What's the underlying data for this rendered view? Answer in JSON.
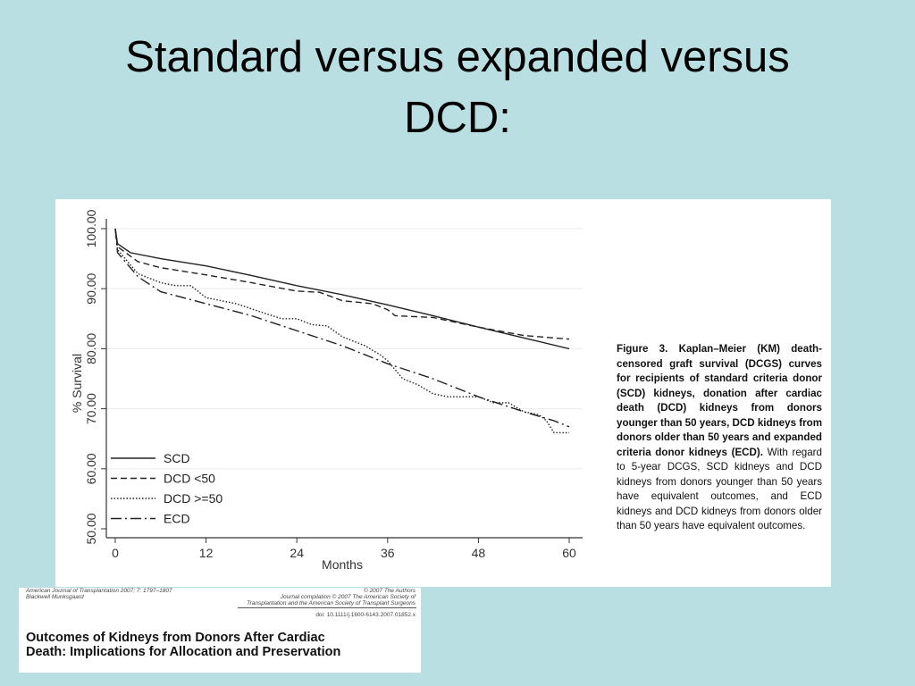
{
  "slide": {
    "title_line1": "Standard versus expanded versus",
    "title_line2": "DCD:"
  },
  "figure_caption": {
    "bold": "Figure 3. Kaplan–Meier (KM) death-censored graft survival (DCGS) curves for recipients of standard criteria donor (SCD) kidneys, donation after cardiac death (DCD) kidneys from donors younger than 50 years, DCD kidneys from donors older than 50 years and expanded criteria donor kidneys (ECD).",
    "normal": " With regard to 5-year DCGS, SCD kidneys and DCD kidneys from donors younger than 50 years have equivalent outcomes, and ECD kidneys and DCD kidneys from donors older than 50 years have equivalent outcomes."
  },
  "paper": {
    "journal": "American Journal of Transplantation 2007; 7: 1797–1807",
    "publisher": "Blackwell Munksgaard",
    "copyright": "© 2007 The Authors",
    "compilation1": "Journal compilation © 2007 The American Society of",
    "compilation2": "Transplantation and the American Society of Transplant Surgeons",
    "doi": "doi: 10.1111/j.1600-6143.2007.01852.x",
    "title_line1": "Outcomes of Kidneys from Donors After Cardiac",
    "title_line2": "Death: Implications for Allocation and Preservation"
  },
  "chart_data": {
    "type": "line",
    "xlabel": "Months",
    "ylabel": "% Survival",
    "xlim": [
      0,
      60
    ],
    "ylim": [
      50,
      100
    ],
    "xticks": [
      "0",
      "12",
      "24",
      "36",
      "48",
      "60"
    ],
    "yticks": [
      "50.00",
      "60.00",
      "70.00",
      "80.00",
      "90.00",
      "100.00"
    ],
    "grid": "horizontal",
    "legend_placement": "bottom-left",
    "series": [
      {
        "name": "SCD",
        "style": "solid",
        "x": [
          0,
          0.3,
          2,
          6,
          12,
          18,
          24,
          30,
          36,
          42,
          48,
          54,
          60
        ],
        "y": [
          100,
          97.5,
          96,
          95,
          93.8,
          92.2,
          90.5,
          89,
          87.3,
          85.5,
          83.6,
          81.8,
          80
        ]
      },
      {
        "name": "DCD <50",
        "style": "dashed",
        "x": [
          0,
          0.3,
          3,
          6,
          12,
          18,
          24,
          27,
          30,
          34,
          36,
          37,
          42,
          48,
          54,
          60
        ],
        "y": [
          100,
          97,
          94.5,
          93.5,
          92.3,
          91,
          89.6,
          89.4,
          88,
          87.5,
          86.5,
          85.5,
          85.2,
          83.6,
          82.2,
          81.6
        ]
      },
      {
        "name": "DCD >=50",
        "style": "dotted",
        "x": [
          0,
          0.3,
          3,
          6,
          8,
          10,
          12,
          16,
          20,
          22,
          24,
          26,
          28,
          30,
          33,
          35,
          36,
          38,
          40,
          42,
          44,
          48,
          50,
          52,
          54,
          56,
          57,
          58,
          60
        ],
        "y": [
          100,
          96.5,
          92.5,
          91,
          90.5,
          90.5,
          88.5,
          87.5,
          85.8,
          85,
          85,
          84,
          83.8,
          82,
          80.5,
          79,
          78,
          75,
          74,
          72.5,
          72,
          72,
          71,
          71,
          69.5,
          69,
          68,
          66,
          66
        ]
      },
      {
        "name": "ECD",
        "style": "dashdot",
        "x": [
          0,
          0.3,
          3,
          6,
          12,
          18,
          24,
          30,
          36,
          42,
          48,
          54,
          58,
          60
        ],
        "y": [
          100,
          96,
          92,
          89.5,
          87.5,
          85.5,
          83,
          80.5,
          77.5,
          75,
          72,
          69.5,
          68,
          67
        ]
      }
    ]
  }
}
